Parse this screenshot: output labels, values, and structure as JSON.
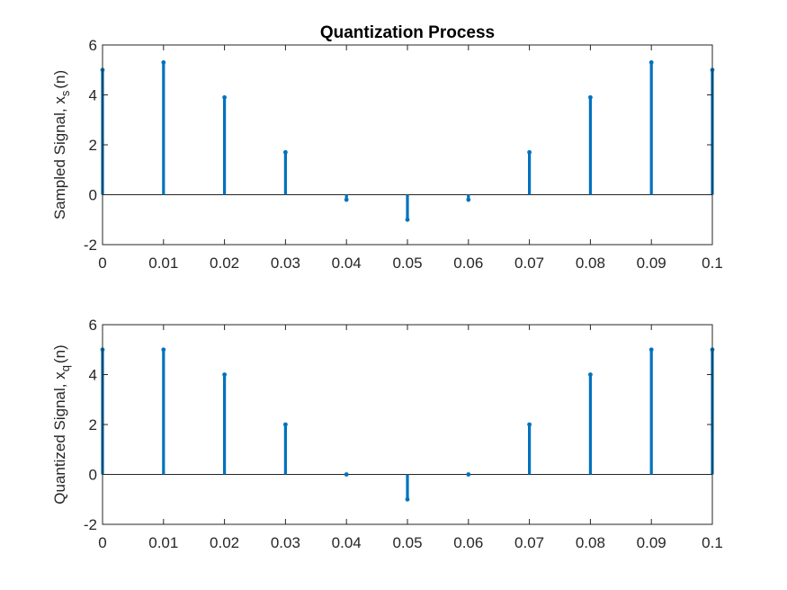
{
  "figure": {
    "title": "Quantization Process"
  },
  "colors": {
    "stem": "#0072BD",
    "axis": "#262626",
    "background": "#ffffff"
  },
  "chart_data": [
    {
      "type": "stem",
      "title": "Quantization Process",
      "xlabel": "",
      "ylabel": "Sampled Signal, x",
      "ylabel_subscript": "s",
      "ylabel_suffix": "(n)",
      "xlim": [
        0,
        0.1
      ],
      "ylim": [
        -2,
        6
      ],
      "x": [
        0,
        0.01,
        0.02,
        0.03,
        0.04,
        0.05,
        0.06,
        0.07,
        0.08,
        0.09,
        0.1
      ],
      "y": [
        5.0,
        5.3,
        3.9,
        1.7,
        -0.2,
        -1.0,
        -0.2,
        1.7,
        3.9,
        5.3,
        5.0
      ],
      "xticks": [
        "0",
        "0.01",
        "0.02",
        "0.03",
        "0.04",
        "0.05",
        "0.06",
        "0.07",
        "0.08",
        "0.09",
        "0.1"
      ],
      "yticks": [
        "-2",
        "0",
        "2",
        "4",
        "6"
      ],
      "grid": false
    },
    {
      "type": "stem",
      "title": "",
      "xlabel": "",
      "ylabel": "Quantized Signal, x",
      "ylabel_subscript": "q",
      "ylabel_suffix": "(n)",
      "xlim": [
        0,
        0.1
      ],
      "ylim": [
        -2,
        6
      ],
      "x": [
        0,
        0.01,
        0.02,
        0.03,
        0.04,
        0.05,
        0.06,
        0.07,
        0.08,
        0.09,
        0.1
      ],
      "y": [
        5,
        5,
        4,
        2,
        0,
        -1,
        0,
        2,
        4,
        5,
        5
      ],
      "xticks": [
        "0",
        "0.01",
        "0.02",
        "0.03",
        "0.04",
        "0.05",
        "0.06",
        "0.07",
        "0.08",
        "0.09",
        "0.1"
      ],
      "yticks": [
        "-2",
        "0",
        "2",
        "4",
        "6"
      ],
      "grid": false
    }
  ]
}
